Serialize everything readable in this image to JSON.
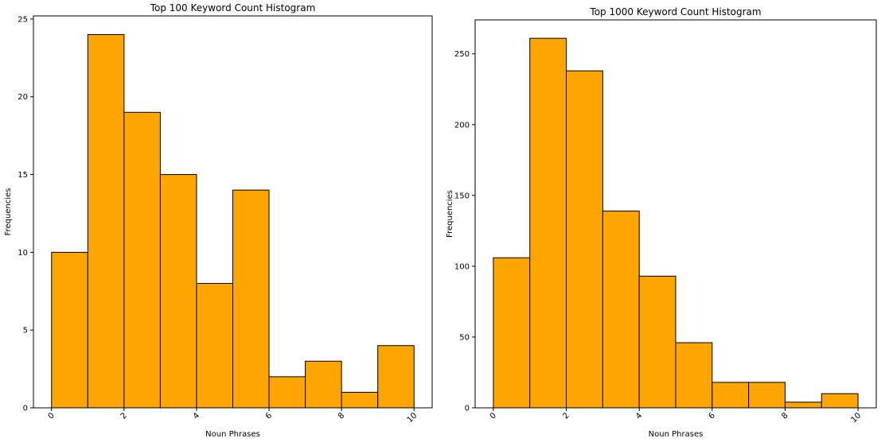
{
  "chart_data": [
    {
      "type": "bar",
      "title": "Top 100 Keyword Count Histogram",
      "xlabel": "Noun Phrases",
      "ylabel": "Frequencies",
      "bin_edges": [
        0,
        1,
        2,
        3,
        4,
        5,
        6,
        7,
        8,
        9,
        10
      ],
      "values": [
        10,
        24,
        19,
        15,
        8,
        14,
        2,
        3,
        1,
        4
      ],
      "xlim": [
        -0.5,
        10.5
      ],
      "ylim": [
        0,
        25.2
      ],
      "xticks": [
        "0",
        "2",
        "4",
        "6",
        "8",
        "10"
      ],
      "xtick_values": [
        0,
        2,
        4,
        6,
        8,
        10
      ],
      "xtick_rotation": 45,
      "yticks": [
        "0",
        "5",
        "10",
        "15",
        "20",
        "25"
      ],
      "ytick_values": [
        0,
        5,
        10,
        15,
        20,
        25
      ],
      "bar_color": "#ffa500",
      "edge_color": "#000000",
      "grid": false
    },
    {
      "type": "bar",
      "title": "Top 1000 Keyword Count Histogram",
      "xlabel": "Noun Phrases",
      "ylabel": "Frequencies",
      "bin_edges": [
        0,
        1,
        2,
        3,
        4,
        5,
        6,
        7,
        8,
        9,
        10
      ],
      "values": [
        106,
        261,
        238,
        139,
        93,
        46,
        18,
        18,
        4,
        10
      ],
      "xlim": [
        -0.5,
        10.5
      ],
      "ylim": [
        0,
        274
      ],
      "xticks": [
        "0",
        "2",
        "4",
        "6",
        "8",
        "10"
      ],
      "xtick_values": [
        0,
        2,
        4,
        6,
        8,
        10
      ],
      "xtick_rotation": 45,
      "yticks": [
        "0",
        "50",
        "100",
        "150",
        "200",
        "250"
      ],
      "ytick_values": [
        0,
        50,
        100,
        150,
        200,
        250
      ],
      "bar_color": "#ffa500",
      "edge_color": "#000000",
      "grid": false
    }
  ]
}
